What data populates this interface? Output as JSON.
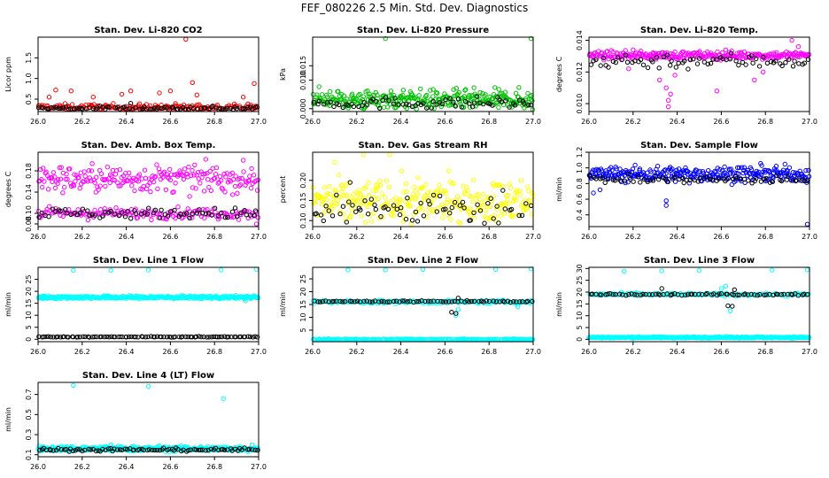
{
  "title": "FEF_080226  2.5 Min. Std. Dev. Diagnostics",
  "colors": {
    "axis": "#000000",
    "series_black": "#000000",
    "red": "#ff0000",
    "green": "#00c000",
    "magenta": "#ff00ff",
    "yellow": "#ffff00",
    "blue": "#0000ff",
    "cyan": "#00ffff"
  },
  "chart_data": [
    {
      "type": "scatter",
      "title": "Stan. Dev. Li-820 CO2",
      "xlabel": "",
      "ylabel": "Licor ppm",
      "xlim": [
        26.0,
        27.0
      ],
      "ylim": [
        0.2,
        2.0
      ],
      "xticks": [
        "26.0",
        "26.2",
        "26.4",
        "26.6",
        "26.8",
        "27.0"
      ],
      "xtick_values": [
        26.0,
        26.2,
        26.4,
        26.6,
        26.8,
        27.0
      ],
      "yticks": [
        "0.5",
        "1.0",
        "1.5"
      ],
      "ytick_values": [
        0.5,
        1.0,
        1.5
      ],
      "series": [
        {
          "color": "#ff0000",
          "base": 0.3,
          "spread": 0.08,
          "count": 190,
          "outliers": [
            [
              26.67,
              1.95
            ],
            [
              26.98,
              0.88
            ],
            [
              26.7,
              0.9
            ],
            [
              26.6,
              0.7
            ],
            [
              26.42,
              0.7
            ],
            [
              26.38,
              0.62
            ],
            [
              26.15,
              0.7
            ],
            [
              26.08,
              0.72
            ],
            [
              26.05,
              0.55
            ],
            [
              26.55,
              0.65
            ],
            [
              26.72,
              0.6
            ],
            [
              26.25,
              0.55
            ],
            [
              26.93,
              0.55
            ]
          ]
        },
        {
          "color": "#000000",
          "base": 0.28,
          "spread": 0.05,
          "count": 90,
          "outliers": [
            [
              26.42,
              0.4
            ]
          ]
        }
      ]
    },
    {
      "type": "scatter",
      "title": "Stan. Dev. Li-820 Pressure",
      "xlabel": "",
      "ylabel": "kPa",
      "xlim": [
        26.0,
        27.0
      ],
      "ylim": [
        -0.001,
        0.025
      ],
      "xticks": [
        "26.0",
        "26.2",
        "26.4",
        "26.6",
        "26.8",
        "27.0"
      ],
      "xtick_values": [
        26.0,
        26.2,
        26.4,
        26.6,
        26.8,
        27.0
      ],
      "yticks": [
        "0.000",
        "0.010",
        "0.015"
      ],
      "ytick_values": [
        0.0,
        0.01,
        0.015
      ],
      "series": [
        {
          "color": "#00c000",
          "base": 0.003,
          "spread": 0.0035,
          "count": 320,
          "outliers": [
            [
              26.33,
              0.0245
            ],
            [
              26.99,
              0.0245
            ]
          ]
        },
        {
          "color": "#000000",
          "base": 0.002,
          "spread": 0.002,
          "count": 70,
          "outliers": []
        }
      ]
    },
    {
      "type": "scatter",
      "title": "Stan. Dev. Li-820 Temp.",
      "xlabel": "",
      "ylabel": "degrees C",
      "xlim": [
        26.0,
        27.0
      ],
      "ylim": [
        0.0095,
        0.0142
      ],
      "xticks": [
        "26.0",
        "26.2",
        "26.4",
        "26.6",
        "26.8",
        "27.0"
      ],
      "xtick_values": [
        26.0,
        26.2,
        26.4,
        26.6,
        26.8,
        27.0
      ],
      "yticks": [
        "0.010",
        "0.012",
        "0.014"
      ],
      "ytick_values": [
        0.01,
        0.012,
        0.014
      ],
      "series": [
        {
          "color": "#ff00ff",
          "base": 0.01305,
          "spread": 0.00025,
          "count": 260,
          "outliers": [
            [
              26.36,
              0.0098
            ],
            [
              26.36,
              0.0102
            ],
            [
              26.37,
              0.0106
            ],
            [
              26.35,
              0.011
            ],
            [
              26.32,
              0.0115
            ],
            [
              26.39,
              0.0118
            ],
            [
              26.58,
              0.0108
            ],
            [
              26.75,
              0.0115
            ],
            [
              26.79,
              0.012
            ],
            [
              26.18,
              0.0122
            ],
            [
              26.92,
              0.014
            ],
            [
              26.95,
              0.0136
            ],
            [
              26.2,
              0.0134
            ],
            [
              26.62,
              0.0134
            ]
          ]
        },
        {
          "color": "#000000",
          "base": 0.0127,
          "spread": 0.0005,
          "count": 70,
          "outliers": []
        }
      ]
    },
    {
      "type": "scatter",
      "title": "Stan. Dev. Amb. Box Temp.",
      "xlabel": "",
      "ylabel": "degrees C",
      "xlim": [
        26.0,
        27.0
      ],
      "ylim": [
        0.075,
        0.215
      ],
      "xticks": [
        "26.0",
        "26.2",
        "26.4",
        "26.6",
        "26.8",
        "27.0"
      ],
      "xtick_values": [
        26.0,
        26.2,
        26.4,
        26.6,
        26.8,
        27.0
      ],
      "yticks": [
        "0.08",
        "0.10",
        "0.14",
        "0.18"
      ],
      "ytick_values": [
        0.08,
        0.1,
        0.14,
        0.18
      ],
      "series": [
        {
          "color": "#ff00ff",
          "base": 0.165,
          "spread": 0.025,
          "count": 220,
          "outliers": [
            [
              26.99,
              0.08
            ]
          ]
        },
        {
          "color": "#ff00ff",
          "base": 0.1,
          "spread": 0.01,
          "count": 160,
          "outliers": []
        },
        {
          "color": "#000000",
          "base": 0.1,
          "spread": 0.01,
          "count": 70,
          "outliers": []
        }
      ]
    },
    {
      "type": "scatter",
      "title": "Stan. Dev. Gas Stream RH",
      "xlabel": "",
      "ylabel": "percent",
      "xlim": [
        26.0,
        27.0
      ],
      "ylim": [
        0.085,
        0.27
      ],
      "xticks": [
        "26.0",
        "26.2",
        "26.4",
        "26.6",
        "26.8",
        "27.0"
      ],
      "xtick_values": [
        26.0,
        26.2,
        26.4,
        26.6,
        26.8,
        27.0
      ],
      "yticks": [
        "0.10",
        "0.15",
        "0.20"
      ],
      "ytick_values": [
        0.1,
        0.15,
        0.2
      ],
      "series": [
        {
          "color": "#ffff00",
          "base": 0.145,
          "spread": 0.055,
          "count": 320,
          "outliers": [
            [
              26.23,
              0.265
            ],
            [
              26.35,
              0.265
            ],
            [
              26.1,
              0.245
            ]
          ]
        },
        {
          "color": "#000000",
          "base": 0.13,
          "spread": 0.04,
          "count": 70,
          "outliers": [
            [
              26.17,
              0.195
            ]
          ]
        }
      ]
    },
    {
      "type": "scatter",
      "title": "Stan. Dev. Sample Flow",
      "xlabel": "",
      "ylabel": "ml/min",
      "xlim": [
        26.0,
        27.0
      ],
      "ylim": [
        0.25,
        1.2
      ],
      "xticks": [
        "26.0",
        "26.2",
        "26.4",
        "26.6",
        "26.8",
        "27.0"
      ],
      "xtick_values": [
        26.0,
        26.2,
        26.4,
        26.6,
        26.8,
        27.0
      ],
      "yticks": [
        "0.4",
        "0.6",
        "0.8",
        "1.0",
        "1.2"
      ],
      "ytick_values": [
        0.4,
        0.6,
        0.8,
        1.0,
        1.2
      ],
      "series": [
        {
          "color": "#0000ff",
          "base": 0.92,
          "spread": 0.1,
          "count": 300,
          "outliers": [
            [
              26.99,
              0.28
            ],
            [
              26.35,
              0.52
            ],
            [
              26.35,
              0.58
            ],
            [
              26.02,
              0.68
            ],
            [
              26.05,
              0.72
            ]
          ]
        },
        {
          "color": "#000000",
          "base": 0.85,
          "spread": 0.05,
          "count": 70,
          "outliers": []
        }
      ]
    },
    {
      "type": "scatter",
      "title": "Stan. Dev. Line 1 Flow",
      "xlabel": "",
      "ylabel": "ml/min",
      "xlim": [
        26.0,
        27.0
      ],
      "ylim": [
        -1,
        30
      ],
      "xticks": [
        "26.0",
        "26.2",
        "26.4",
        "26.6",
        "26.8",
        "27.0"
      ],
      "xtick_values": [
        26.0,
        26.2,
        26.4,
        26.6,
        26.8,
        27.0
      ],
      "yticks": [
        "0",
        "5",
        "10",
        "15",
        "20",
        "25"
      ],
      "ytick_values": [
        0,
        5,
        10,
        15,
        20,
        25
      ],
      "series": [
        {
          "color": "#00ffff",
          "base": 17.5,
          "spread": 0.6,
          "count": 340,
          "outliers": [
            [
              26.16,
              28.7
            ],
            [
              26.33,
              28.7
            ],
            [
              26.5,
              28.9
            ],
            [
              26.83,
              28.9
            ],
            [
              26.99,
              29.2
            ],
            [
              26.94,
              16.0
            ]
          ]
        },
        {
          "color": "#000000",
          "base": 1.0,
          "spread": 0.15,
          "count": 95,
          "outliers": []
        }
      ]
    },
    {
      "type": "scatter",
      "title": "Stan. Dev. Line 2 Flow",
      "xlabel": "",
      "ylabel": "ml/min",
      "xlim": [
        26.0,
        27.0
      ],
      "ylim": [
        0.5,
        29.5
      ],
      "xticks": [
        "26.0",
        "26.2",
        "26.4",
        "26.6",
        "26.8",
        "27.0"
      ],
      "xtick_values": [
        26.0,
        26.2,
        26.4,
        26.6,
        26.8,
        27.0
      ],
      "yticks": [
        "5",
        "10",
        "15",
        "20",
        "25"
      ],
      "ytick_values": [
        5,
        10,
        15,
        20,
        25
      ],
      "series": [
        {
          "color": "#00ffff",
          "base": 1.3,
          "spread": 0.3,
          "count": 340,
          "outliers": [
            [
              26.16,
              28.5
            ],
            [
              26.33,
              28.5
            ],
            [
              26.5,
              28.7
            ],
            [
              26.83,
              28.7
            ],
            [
              26.99,
              28.9
            ]
          ]
        },
        {
          "color": "#00ffff",
          "base": 16.0,
          "spread": 0.6,
          "count": 160,
          "outliers": [
            [
              26.65,
              10.8
            ],
            [
              26.66,
              13.0
            ],
            [
              26.93,
              14.2
            ]
          ]
        },
        {
          "color": "#000000",
          "base": 16.2,
          "spread": 0.3,
          "count": 75,
          "outliers": [
            [
              26.63,
              12.0
            ],
            [
              26.65,
              11.5
            ],
            [
              26.66,
              17.5
            ]
          ]
        }
      ]
    },
    {
      "type": "scatter",
      "title": "Stan. Dev. Line 3 Flow",
      "xlabel": "",
      "ylabel": "ml/min",
      "xlim": [
        26.0,
        27.0
      ],
      "ylim": [
        -1,
        30.5
      ],
      "xticks": [
        "26.0",
        "26.2",
        "26.4",
        "26.6",
        "26.8",
        "27.0"
      ],
      "xtick_values": [
        26.0,
        26.2,
        26.4,
        26.6,
        26.8,
        27.0
      ],
      "yticks": [
        "0",
        "5",
        "10",
        "15",
        "20",
        "25",
        "30"
      ],
      "ytick_values": [
        0,
        5,
        10,
        15,
        20,
        25,
        30
      ],
      "series": [
        {
          "color": "#00ffff",
          "base": 0.8,
          "spread": 0.3,
          "count": 340,
          "outliers": [
            [
              26.16,
              28.8
            ],
            [
              26.33,
              29.0
            ],
            [
              26.5,
              29.2
            ],
            [
              26.83,
              29.3
            ],
            [
              26.99,
              29.5
            ],
            [
              26.64,
              12.0
            ],
            [
              26.6,
              21.5
            ],
            [
              26.62,
              22.5
            ]
          ]
        },
        {
          "color": "#00ffff",
          "base": 19.0,
          "spread": 0.6,
          "count": 140,
          "outliers": []
        },
        {
          "color": "#000000",
          "base": 19.0,
          "spread": 0.4,
          "count": 75,
          "outliers": [
            [
              26.63,
              14.2
            ],
            [
              26.65,
              14.0
            ],
            [
              26.66,
              21.0
            ],
            [
              26.33,
              21.5
            ]
          ]
        }
      ]
    },
    {
      "type": "scatter",
      "title": "Stan. Dev. Line 4 (LT) Flow",
      "xlabel": "",
      "ylabel": "ml/min",
      "xlim": [
        26.0,
        27.0
      ],
      "ylim": [
        0.08,
        0.82
      ],
      "xticks": [
        "26.0",
        "26.2",
        "26.4",
        "26.6",
        "26.8",
        "27.0"
      ],
      "xtick_values": [
        26.0,
        26.2,
        26.4,
        26.6,
        26.8,
        27.0
      ],
      "yticks": [
        "0.1",
        "0.3",
        "0.5",
        "0.7"
      ],
      "ytick_values": [
        0.1,
        0.3,
        0.5,
        0.7
      ],
      "series": [
        {
          "color": "#00ffff",
          "base": 0.16,
          "spread": 0.025,
          "count": 340,
          "outliers": [
            [
              26.16,
              0.79
            ],
            [
              26.5,
              0.78
            ],
            [
              26.84,
              0.66
            ],
            [
              26.33,
              0.2
            ],
            [
              26.97,
              0.2
            ]
          ]
        },
        {
          "color": "#000000",
          "base": 0.15,
          "spread": 0.015,
          "count": 90,
          "outliers": []
        }
      ]
    }
  ]
}
